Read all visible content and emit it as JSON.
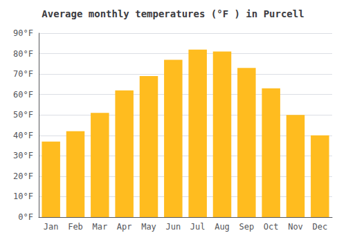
{
  "chart_data": {
    "type": "bar",
    "title": "Average monthly temperatures (°F ) in Purcell",
    "categories": [
      "Jan",
      "Feb",
      "Mar",
      "Apr",
      "May",
      "Jun",
      "Jul",
      "Aug",
      "Sep",
      "Oct",
      "Nov",
      "Dec"
    ],
    "values": [
      37,
      42,
      51,
      62,
      69,
      77,
      82,
      81,
      73,
      63,
      50,
      40
    ],
    "color": "#FFBC1F",
    "ylim": [
      0,
      90
    ],
    "yticks": [
      {
        "value": 0,
        "label": "0°F"
      },
      {
        "value": 10,
        "label": "10°F"
      },
      {
        "value": 20,
        "label": "20°F"
      },
      {
        "value": 30,
        "label": "30°F"
      },
      {
        "value": 40,
        "label": "40°F"
      },
      {
        "value": 50,
        "label": "50°F"
      },
      {
        "value": 60,
        "label": "60°F"
      },
      {
        "value": 70,
        "label": "70°F"
      },
      {
        "value": 80,
        "label": "80°F"
      },
      {
        "value": 90,
        "label": "90°F"
      }
    ],
    "grid": true
  }
}
